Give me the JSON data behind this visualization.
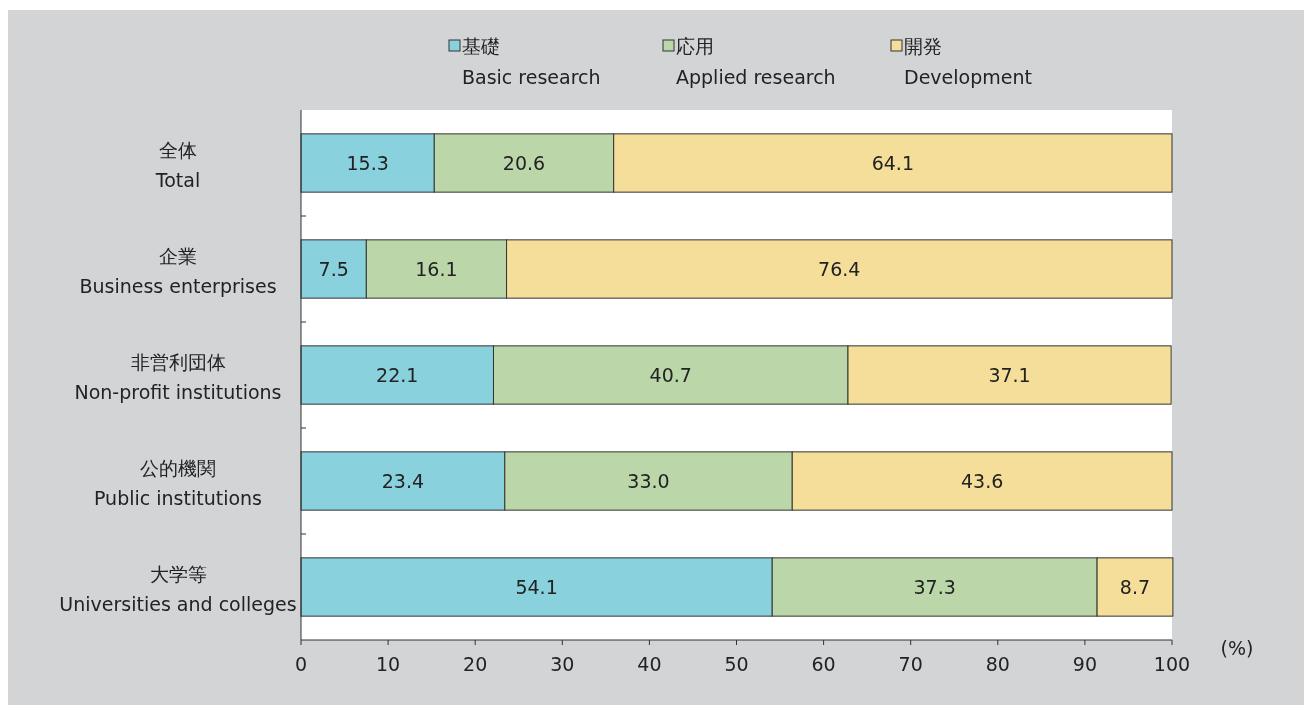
{
  "chart_data": {
    "type": "bar",
    "orientation": "horizontal",
    "stacked": true,
    "legend": "top",
    "grid": false,
    "xlabel": "(%)",
    "categories": [
      "全体\nTotal",
      "企業\nBusiness enterprises",
      "非営利団体\nNon-profit institutions",
      "公的機関\nPublic institutions",
      "大学等\nUniversities and colleges"
    ],
    "series": [
      {
        "name": "基礎\nBasic research",
        "color": "#88d1dd",
        "values": [
          15.3,
          7.5,
          22.1,
          23.4,
          54.1
        ],
        "value_labels": [
          "15.3",
          "7.5",
          "22.1",
          "23.4",
          "54.1"
        ]
      },
      {
        "name": "応用\nApplied research",
        "color": "#bbd7aa",
        "values": [
          20.6,
          16.1,
          40.7,
          33.0,
          37.3
        ],
        "value_labels": [
          "20.6",
          "16.1",
          "40.7",
          "33.0",
          "37.3"
        ]
      },
      {
        "name": "開発\nDevelopment",
        "color": "#f4de99",
        "values": [
          64.1,
          76.4,
          37.1,
          43.6,
          8.7
        ],
        "value_labels": [
          "64.1",
          "76.4",
          "37.1",
          "43.6",
          "8.7"
        ]
      }
    ],
    "xlim": [
      0,
      100
    ],
    "xticks": [
      0,
      10,
      20,
      30,
      40,
      50,
      60,
      70,
      80,
      90,
      100
    ]
  }
}
